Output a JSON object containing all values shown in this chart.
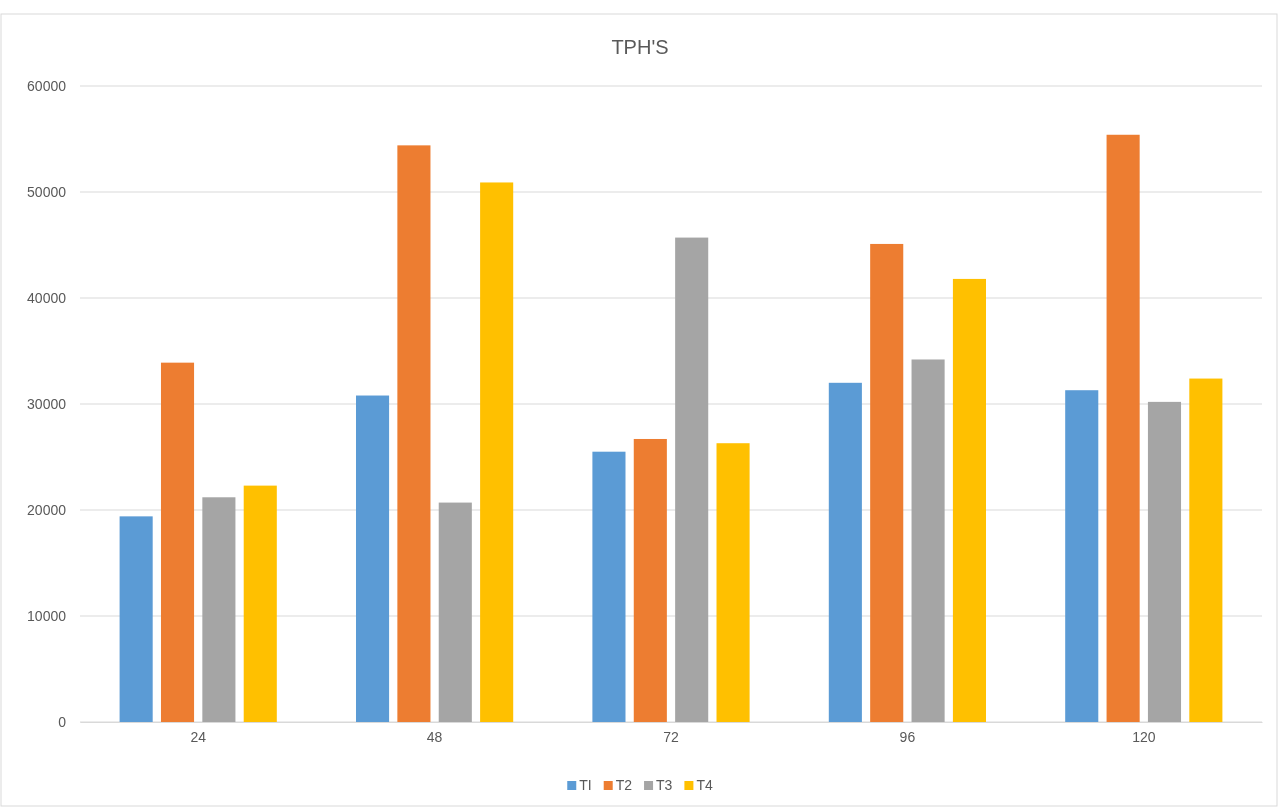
{
  "chart_data": {
    "type": "bar",
    "title": "TPH'S",
    "categories": [
      "24",
      "48",
      "72",
      "96",
      "120"
    ],
    "series": [
      {
        "name": "TI",
        "color": "#5b9bd5",
        "values": [
          19400,
          30800,
          25500,
          32000,
          31300
        ]
      },
      {
        "name": "T2",
        "color": "#ed7d31",
        "values": [
          33900,
          54400,
          26700,
          45100,
          55400
        ]
      },
      {
        "name": "T3",
        "color": "#a5a5a5",
        "values": [
          21200,
          20700,
          45700,
          34200,
          30200
        ]
      },
      {
        "name": "T4",
        "color": "#ffc000",
        "values": [
          22300,
          50900,
          26300,
          41800,
          32400
        ]
      }
    ],
    "ylim": [
      0,
      60000
    ],
    "yticks": [
      0,
      10000,
      20000,
      30000,
      40000,
      50000,
      60000
    ],
    "grid": "y",
    "legend": "bottom"
  }
}
